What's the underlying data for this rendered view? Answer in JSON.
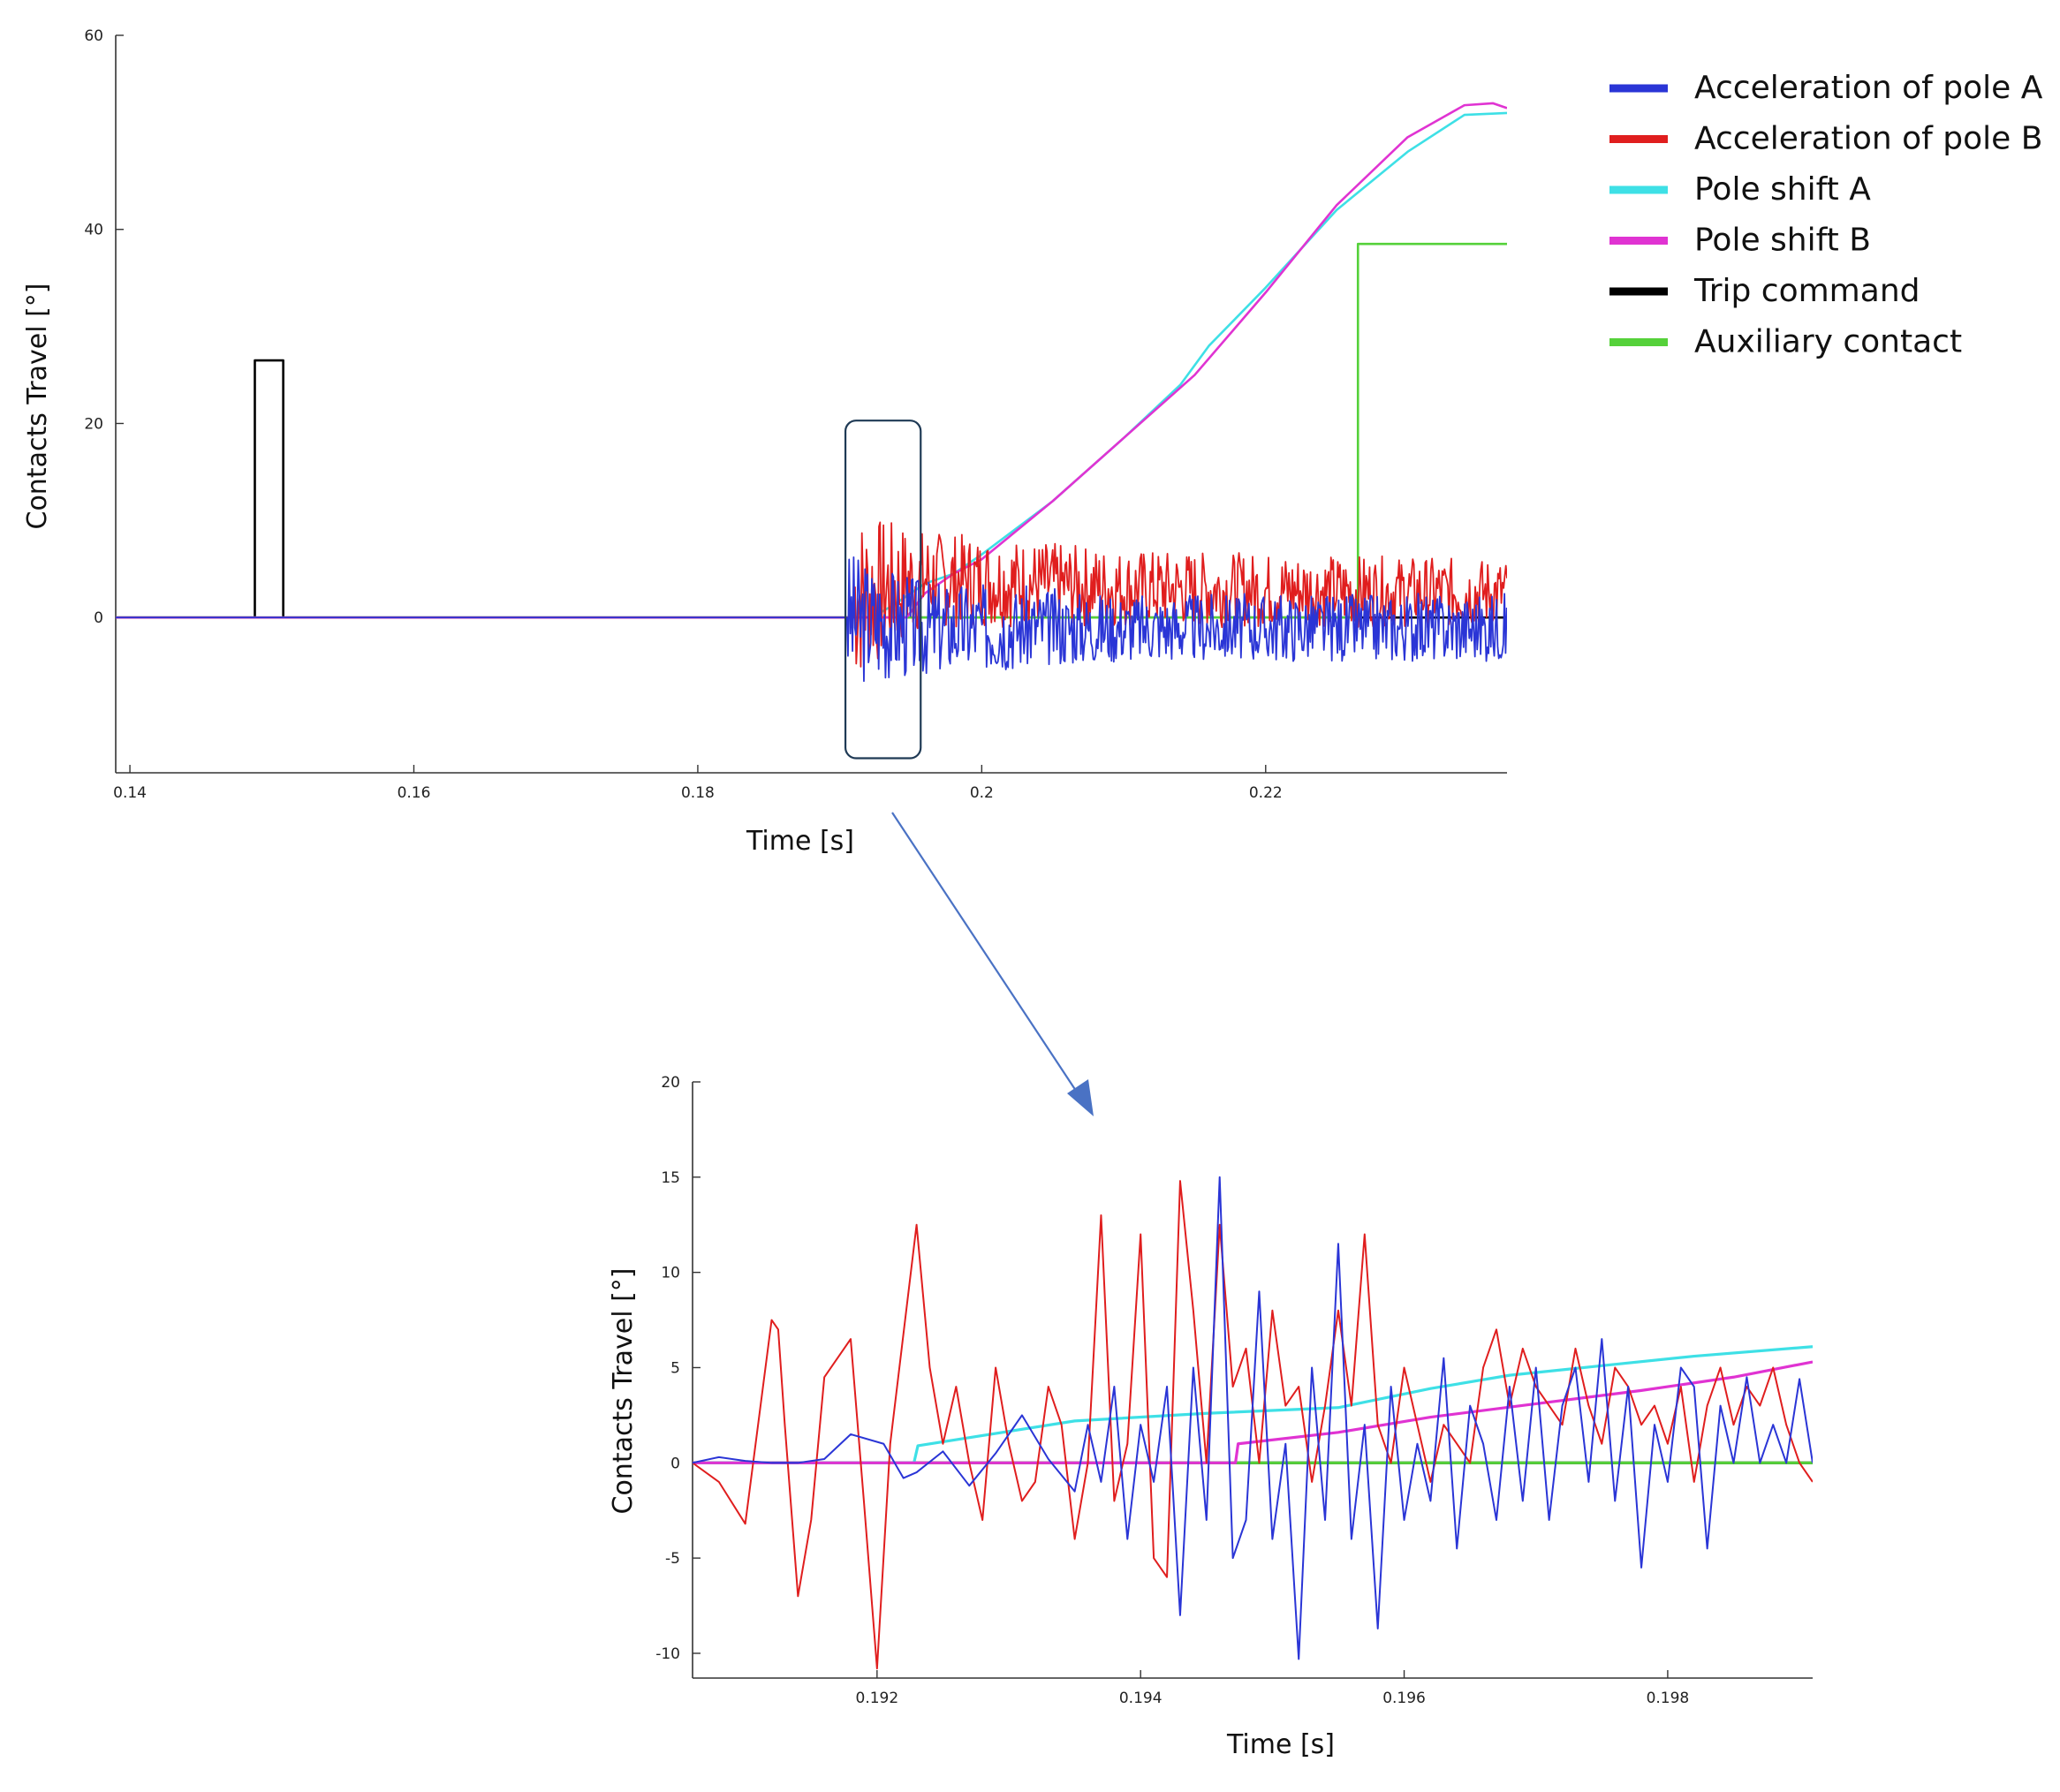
{
  "colors": {
    "acc_a": "#2a35d6",
    "acc_b": "#e01e1e",
    "shift_a": "#3ee0e6",
    "shift_b": "#e033d2",
    "trip": "#000000",
    "aux": "#55d13a",
    "zoom_box": "#1f3a55",
    "arrow": "#4a72c4"
  },
  "legend": {
    "items": [
      {
        "label": "Acceleration of pole A",
        "color": "#2a35d6"
      },
      {
        "label": "Acceleration of pole B",
        "color": "#e01e1e"
      },
      {
        "label": "Pole shift A",
        "color": "#3ee0e6"
      },
      {
        "label": "Pole shift B",
        "color": "#e033d2"
      },
      {
        "label": "Trip command",
        "color": "#000000"
      },
      {
        "label": "Auxiliary contact",
        "color": "#55d13a"
      }
    ]
  },
  "chart_data": [
    {
      "id": "main",
      "type": "line",
      "xlabel": "Time [s]",
      "ylabel": "Contacts Travel [°]",
      "xlim": [
        0.139,
        0.237
      ],
      "ylim": [
        -16,
        60
      ],
      "xticks": [
        0.14,
        0.16,
        0.18,
        0.2,
        0.22
      ],
      "xtick_labels": [
        "0.14",
        "0.16",
        "0.18",
        "0.2",
        "0.22"
      ],
      "yticks": [
        0,
        20,
        40,
        60
      ],
      "ytick_labels": [
        "0",
        "20",
        "40",
        "60"
      ],
      "series": [
        {
          "name": "Trip command",
          "step": true,
          "x": [
            0.139,
            0.1488,
            0.1488,
            0.1508,
            0.1508,
            0.237
          ],
          "y": [
            0,
            0,
            26.5,
            26.5,
            0,
            0
          ]
        },
        {
          "name": "Auxiliary contact",
          "step": true,
          "x": [
            0.139,
            0.2265,
            0.2265,
            0.237
          ],
          "y": [
            0,
            0,
            38.5,
            38.5
          ]
        },
        {
          "name": "Pole shift A",
          "x": [
            0.139,
            0.1923,
            0.194,
            0.196,
            0.198,
            0.2,
            0.205,
            0.21,
            0.214,
            0.216,
            0.22,
            0.225,
            0.23,
            0.234,
            0.237
          ],
          "y": [
            0,
            0,
            1.5,
            3.5,
            4.5,
            6.5,
            12,
            18.5,
            24,
            28,
            34,
            42,
            48,
            51.8,
            52
          ]
        },
        {
          "name": "Pole shift B",
          "x": [
            0.139,
            0.1947,
            0.196,
            0.198,
            0.2,
            0.205,
            0.21,
            0.215,
            0.22,
            0.225,
            0.23,
            0.234,
            0.236,
            0.237
          ],
          "y": [
            0,
            0,
            2.5,
            4.5,
            6,
            12,
            18.5,
            25,
            33.5,
            42.5,
            49.5,
            52.8,
            53,
            52.5
          ]
        },
        {
          "name": "Acceleration of pole B",
          "noise": {
            "x_start": 0.191,
            "x_end": 0.237,
            "seed": 7,
            "envelope": [
              [
                0.191,
                2,
                9
              ],
              [
                0.196,
                4,
                5
              ],
              [
                0.21,
                3,
                4
              ],
              [
                0.237,
                2.5,
                3.5
              ]
            ]
          }
        },
        {
          "name": "Acceleration of pole A",
          "noise": {
            "x_start": 0.1905,
            "x_end": 0.237,
            "seed": 3,
            "envelope": [
              [
                0.1905,
                0,
                7
              ],
              [
                0.196,
                -1,
                5
              ],
              [
                0.21,
                -1,
                3.5
              ],
              [
                0.237,
                -1,
                3.5
              ]
            ]
          }
        }
      ]
    },
    {
      "id": "zoom",
      "type": "line",
      "xlabel": "Time [s]",
      "ylabel": "Contacts Travel [°]",
      "xlim": [
        0.1906,
        0.1991
      ],
      "ylim": [
        -11.3,
        20
      ],
      "xticks": [
        0.192,
        0.194,
        0.196,
        0.198
      ],
      "xtick_labels": [
        "0.192",
        "0.194",
        "0.196",
        "0.198"
      ],
      "yticks": [
        -10,
        -5,
        0,
        5,
        10,
        15,
        20
      ],
      "ytick_labels": [
        "-10",
        "-5",
        "0",
        "5",
        "10",
        "15",
        "20"
      ],
      "series": [
        {
          "name": "Trip command",
          "x": [
            0.1906,
            0.1991
          ],
          "y": [
            0,
            0
          ]
        },
        {
          "name": "Auxiliary contact",
          "x": [
            0.1906,
            0.1991
          ],
          "y": [
            0,
            0
          ]
        },
        {
          "name": "Pole shift A",
          "x": [
            0.1906,
            0.19228,
            0.19231,
            0.1935,
            0.1945,
            0.1955,
            0.1962,
            0.1968,
            0.1975,
            0.1982,
            0.1991
          ],
          "y": [
            0,
            0,
            0.9,
            2.2,
            2.6,
            2.9,
            3.9,
            4.6,
            5.1,
            5.6,
            6.1
          ]
        },
        {
          "name": "Pole shift B",
          "x": [
            0.1906,
            0.19472,
            0.19474,
            0.1955,
            0.1962,
            0.197,
            0.1978,
            0.1985,
            0.1991
          ],
          "y": [
            0,
            0,
            1.0,
            1.6,
            2.4,
            3.1,
            3.8,
            4.5,
            5.3
          ]
        },
        {
          "name": "Acceleration of pole B",
          "x": [
            0.1906,
            0.1908,
            0.191,
            0.1912,
            0.19125,
            0.1913,
            0.1914,
            0.1915,
            0.1916,
            0.1918,
            0.1919,
            0.192,
            0.1921,
            0.1923,
            0.1924,
            0.1925,
            0.1926,
            0.1927,
            0.1928,
            0.1929,
            0.193,
            0.1931,
            0.1932,
            0.1933,
            0.1934,
            0.1935,
            0.1936,
            0.1937,
            0.1938,
            0.1939,
            0.194,
            0.1941,
            0.1942,
            0.1943,
            0.1944,
            0.1945,
            0.1946,
            0.1947,
            0.1948,
            0.1949,
            0.195,
            0.1951,
            0.1952,
            0.1953,
            0.1954,
            0.1955,
            0.1956,
            0.1957,
            0.1958,
            0.1959,
            0.196,
            0.1961,
            0.1962,
            0.1963,
            0.1964,
            0.1965,
            0.1966,
            0.1967,
            0.1968,
            0.1969,
            0.197,
            0.1971,
            0.1972,
            0.1973,
            0.1974,
            0.1975,
            0.1976,
            0.1977,
            0.1978,
            0.1979,
            0.198,
            0.1981,
            0.1982,
            0.1983,
            0.1984,
            0.1985,
            0.1986,
            0.1987,
            0.1988,
            0.1989,
            0.199,
            0.1991
          ],
          "y": [
            0,
            -1,
            -3.2,
            7.5,
            7.0,
            2,
            -7,
            -3,
            4.5,
            6.5,
            -2,
            -10.8,
            1,
            12.5,
            5,
            1,
            4,
            0,
            -3,
            5,
            1,
            -2,
            -1,
            4,
            2,
            -4,
            0,
            13,
            -2,
            1,
            12,
            -5,
            -6,
            14.8,
            8,
            0,
            12.5,
            4,
            6,
            0,
            8,
            3,
            4,
            -1,
            3,
            8,
            3,
            12,
            2,
            0,
            5,
            2,
            -1,
            2,
            1,
            0,
            5,
            7,
            3,
            6,
            4,
            3,
            2,
            6,
            3,
            1,
            5,
            4,
            2,
            3,
            1,
            4,
            -1,
            3,
            5,
            2,
            4,
            3,
            5,
            2,
            0,
            -1
          ]
        },
        {
          "name": "Acceleration of pole A",
          "x": [
            0.1906,
            0.1908,
            0.191,
            0.1912,
            0.1914,
            0.1916,
            0.1918,
            0.19205,
            0.1922,
            0.1923,
            0.1925,
            0.1927,
            0.1929,
            0.1931,
            0.1933,
            0.1935,
            0.1936,
            0.1937,
            0.1938,
            0.1939,
            0.194,
            0.1941,
            0.1942,
            0.1943,
            0.1944,
            0.1945,
            0.1946,
            0.1947,
            0.1948,
            0.1949,
            0.195,
            0.1951,
            0.1952,
            0.1953,
            0.1954,
            0.1955,
            0.1956,
            0.1957,
            0.1958,
            0.1959,
            0.196,
            0.1961,
            0.1962,
            0.1963,
            0.1964,
            0.1965,
            0.1966,
            0.1967,
            0.1968,
            0.1969,
            0.197,
            0.1971,
            0.1972,
            0.1973,
            0.1974,
            0.1975,
            0.1976,
            0.1977,
            0.1978,
            0.1979,
            0.198,
            0.1981,
            0.1982,
            0.1983,
            0.1984,
            0.1985,
            0.1986,
            0.1987,
            0.1988,
            0.1989,
            0.199,
            0.1991
          ],
          "y": [
            0,
            0.3,
            0.1,
            0,
            0,
            0.2,
            1.5,
            1.0,
            -0.8,
            -0.5,
            0.6,
            -1.2,
            0.5,
            2.5,
            0.2,
            -1.5,
            2.0,
            -1.0,
            4.0,
            -4.0,
            2.0,
            -1.0,
            4.0,
            -8.0,
            5.0,
            -3.0,
            15.0,
            -5.0,
            -3.0,
            9.0,
            -4.0,
            1.0,
            -10.3,
            5.0,
            -3.0,
            11.5,
            -4.0,
            2.0,
            -8.7,
            4.0,
            -3.0,
            1.0,
            -2.0,
            5.5,
            -4.5,
            3.0,
            1.0,
            -3.0,
            4.0,
            -2.0,
            5.0,
            -3.0,
            3.0,
            5.0,
            -1.0,
            6.5,
            -2.0,
            4.0,
            -5.5,
            2.0,
            -1.0,
            5.0,
            4.0,
            -4.5,
            3.0,
            0.0,
            4.5,
            0.0,
            2.0,
            0.0,
            4.4,
            0.0
          ]
        }
      ]
    }
  ]
}
